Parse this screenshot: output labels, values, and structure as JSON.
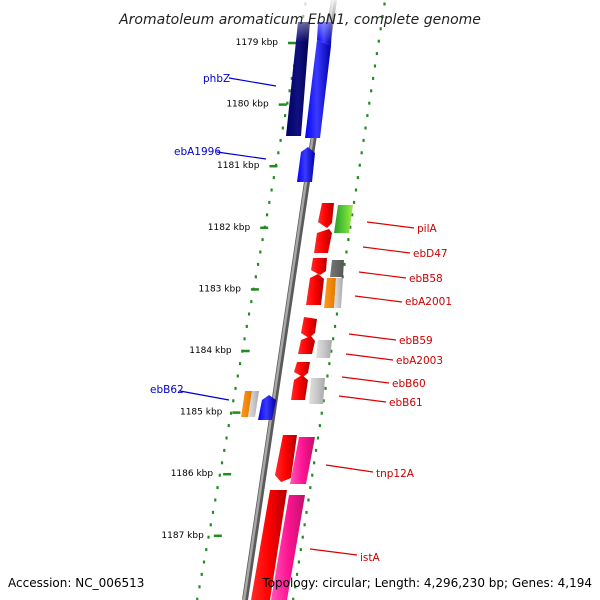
{
  "title": "Aromatoleum aromaticum EbN1, complete genome",
  "footer": {
    "accession": "Accession: NC_006513",
    "summary": "Topology: circular; Length: 4,296,230 bp; Genes: 4,194"
  },
  "colors": {
    "backbone": "#808080",
    "tick": "#228b22",
    "label_blue": "#0000cc",
    "label_red": "#cc0000",
    "leader_blue": "#0000cc",
    "leader_red": "#dd0000"
  },
  "scale": {
    "unit": "kbp",
    "ticks": [
      {
        "kbp": 1179,
        "label": "1179 kbp"
      },
      {
        "kbp": 1180,
        "label": "1180 kbp"
      },
      {
        "kbp": 1181,
        "label": "1181 kbp"
      },
      {
        "kbp": 1182,
        "label": "1182 kbp"
      },
      {
        "kbp": 1183,
        "label": "1183 kbp"
      },
      {
        "kbp": 1184,
        "label": "1184 kbp"
      },
      {
        "kbp": 1185,
        "label": "1185 kbp"
      },
      {
        "kbp": 1186,
        "label": "1186 kbp"
      },
      {
        "kbp": 1187,
        "label": "1187 kbp"
      }
    ]
  },
  "genes": [
    {
      "name": "phbZ",
      "label_color": "blue"
    },
    {
      "name": "ebA1996",
      "label_color": "blue"
    },
    {
      "name": "pilA",
      "label_color": "red"
    },
    {
      "name": "ebD47",
      "label_color": "red"
    },
    {
      "name": "ebB58",
      "label_color": "red"
    },
    {
      "name": "ebA2001",
      "label_color": "red"
    },
    {
      "name": "ebB59",
      "label_color": "red"
    },
    {
      "name": "ebA2003",
      "label_color": "red"
    },
    {
      "name": "ebB60",
      "label_color": "red"
    },
    {
      "name": "ebB61",
      "label_color": "red"
    },
    {
      "name": "ebB62",
      "label_color": "blue"
    },
    {
      "name": "tnp12A",
      "label_color": "red"
    },
    {
      "name": "istA",
      "label_color": "red"
    }
  ]
}
